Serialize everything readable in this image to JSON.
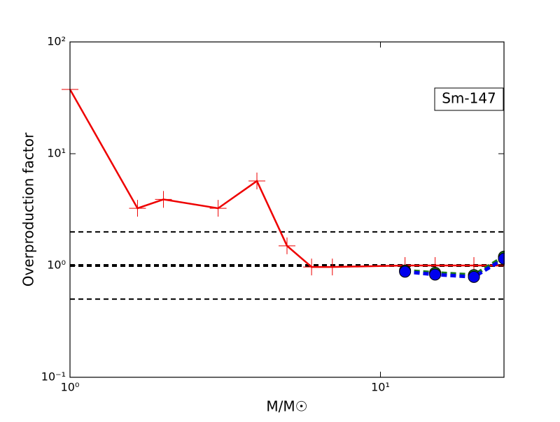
{
  "chart_data": {
    "type": "line",
    "xlabel": "M/M☉",
    "ylabel": "Overproduction factor",
    "annotation": "Sm-147",
    "xlog": true,
    "ylog": true,
    "xlim": [
      1,
      25
    ],
    "ylim": [
      0.1,
      100
    ],
    "xticks": [
      {
        "value": 1,
        "label": "10⁰"
      },
      {
        "value": 10,
        "label": "10¹"
      }
    ],
    "yticks": [
      {
        "value": 0.1,
        "label": "10⁻¹"
      },
      {
        "value": 1,
        "label": "10⁰"
      },
      {
        "value": 10,
        "label": "10¹"
      },
      {
        "value": 100,
        "label": "10²"
      }
    ],
    "hlines": [
      0.5,
      1,
      2
    ],
    "hline_widths": [
      2,
      4,
      2
    ],
    "hline_color": "#000000",
    "series": [
      {
        "color": "#ee0000",
        "linestyle": "solid",
        "marker": "plus",
        "x": [
          1,
          1.65,
          2,
          3,
          4,
          5,
          6,
          7,
          12,
          15,
          20,
          25
        ],
        "values": [
          37.6,
          3.25,
          3.9,
          3.25,
          5.7,
          1.5,
          0.97,
          0.97,
          1.0,
          1.0,
          1.0,
          1.0
        ]
      },
      {
        "color": "#1a7a1a",
        "linestyle": "dashed",
        "marker": "circle",
        "x": [
          12,
          15,
          20,
          25
        ],
        "values": [
          0.9,
          0.86,
          0.82,
          1.2
        ]
      },
      {
        "color": "#0000ee",
        "linestyle": "dashed",
        "marker": "circle",
        "x": [
          12,
          15,
          20,
          25
        ],
        "values": [
          0.88,
          0.83,
          0.79,
          1.15
        ]
      }
    ]
  }
}
